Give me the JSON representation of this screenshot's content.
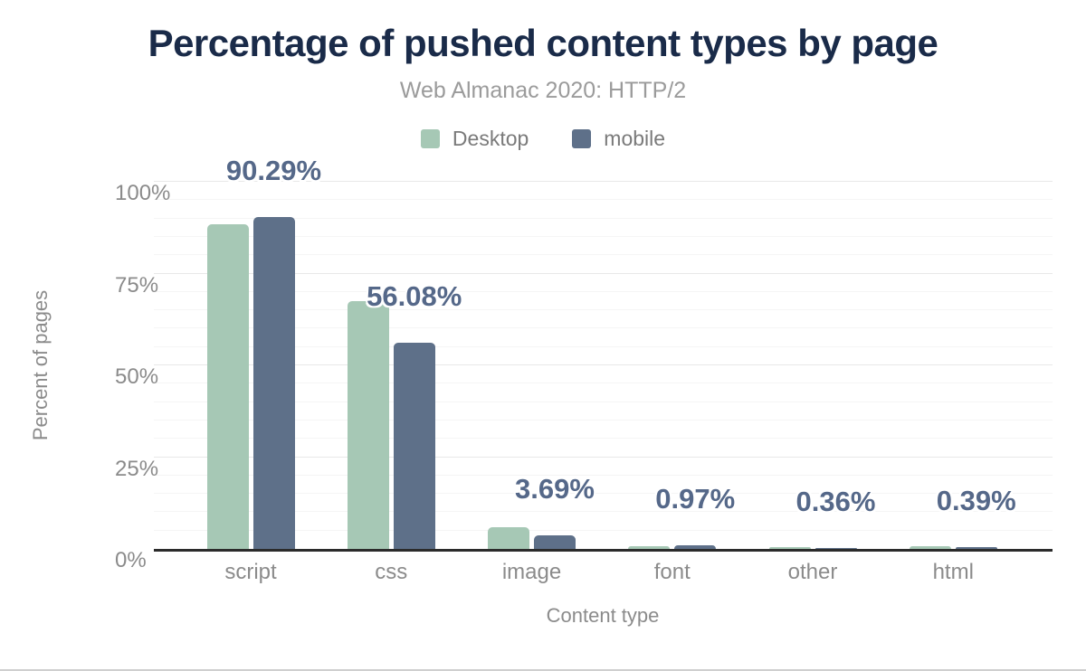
{
  "chart_data": {
    "type": "bar",
    "title": "Percentage of pushed content types by page",
    "subtitle": "Web Almanac 2020: HTTP/2",
    "xlabel": "Content type",
    "ylabel": "Percent of pages",
    "categories": [
      "script",
      "css",
      "image",
      "font",
      "other",
      "html"
    ],
    "series": [
      {
        "name": "Desktop",
        "color": "#a6c8b5",
        "values": [
          88.4,
          67.4,
          5.9,
          0.8,
          0.55,
          0.7
        ]
      },
      {
        "name": "mobile",
        "color": "#5e7089",
        "values": [
          90.29,
          56.08,
          3.69,
          0.97,
          0.36,
          0.39
        ]
      }
    ],
    "value_labels": [
      "90.29%",
      "56.08%",
      "3.69%",
      "0.97%",
      "0.36%",
      "0.39%"
    ],
    "value_labels_series": "mobile",
    "ylim": [
      0,
      100
    ],
    "yticks": [
      {
        "value": 0,
        "label": "0%"
      },
      {
        "value": 25,
        "label": "25%"
      },
      {
        "value": 50,
        "label": "50%"
      },
      {
        "value": 75,
        "label": "75%"
      },
      {
        "value": 100,
        "label": "100%"
      }
    ],
    "grid": {
      "minor_step": 5,
      "major_step": 25
    },
    "legend_position": "top",
    "colors": {
      "title": "#1a2b49",
      "subtitle": "#9b9b9b",
      "axis_text": "#8b8b8b",
      "value_label": "#556889",
      "axis_line": "#2b2b2b"
    }
  }
}
